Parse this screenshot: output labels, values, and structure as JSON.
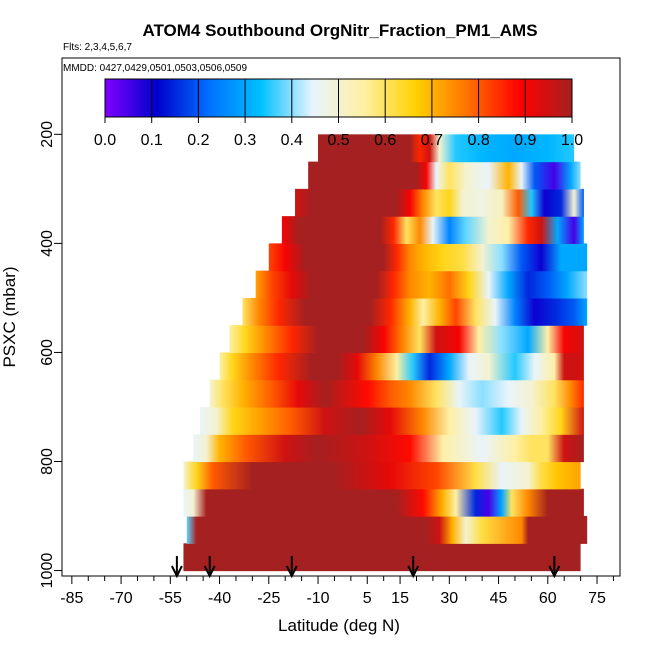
{
  "chart_data": {
    "type": "heatmap",
    "title": "ATOM4 Southbound OrgNitr_Fraction_PM1_AMS",
    "flights_note": "Flts: 2,3,4,5,6,7",
    "dates_note": "MMDD: 0427,0429,0501,0503,0506,0509",
    "xlabel": "Latitude (deg N)",
    "ylabel": "PSXC (mbar)",
    "xlim": [
      -88,
      82
    ],
    "ylim": [
      1010,
      60
    ],
    "x_ticks": [
      -85,
      -70,
      -55,
      -40,
      -25,
      -10,
      5,
      15,
      30,
      45,
      60,
      75
    ],
    "y_ticks": [
      200,
      400,
      600,
      800,
      1000
    ],
    "colorbar": {
      "range": [
        0,
        1
      ],
      "ticks": [
        "0.0",
        "0.1",
        "0.2",
        "0.3",
        "0.4",
        "0.5",
        "0.6",
        "0.7",
        "0.8",
        "0.9",
        "1.0"
      ],
      "colors": [
        "#8000ff",
        "#0000cc",
        "#0070ff",
        "#00c0ff",
        "#e8f4ff",
        "#fff0a0",
        "#ffd000",
        "#ff7000",
        "#ff0000",
        "#a52020"
      ]
    },
    "arrow_latitudes": [
      -53,
      -43,
      -18,
      19,
      62
    ],
    "levels": [
      {
        "p": 975,
        "lat_min": -51,
        "lat_max": 70,
        "stops": [
          [
            -51,
            1.0
          ],
          [
            70,
            1.0
          ]
        ]
      },
      {
        "p": 925,
        "lat_min": -50,
        "lat_max": 72,
        "stops": [
          [
            -50,
            0.38
          ],
          [
            -47,
            1.0
          ],
          [
            23,
            1.0
          ],
          [
            27,
            0.95
          ],
          [
            31,
            0.7
          ],
          [
            35,
            0.5
          ],
          [
            40,
            0.62
          ],
          [
            52,
            0.75
          ],
          [
            54,
            1.0
          ],
          [
            72,
            1.0
          ]
        ]
      },
      {
        "p": 875,
        "lat_min": -51,
        "lat_max": 71,
        "stops": [
          [
            -51,
            0.45
          ],
          [
            -48,
            0.5
          ],
          [
            -44,
            1.0
          ],
          [
            14,
            1.0
          ],
          [
            22,
            0.88
          ],
          [
            28,
            0.7
          ],
          [
            32,
            0.55
          ],
          [
            38,
            0.15
          ],
          [
            42,
            0.05
          ],
          [
            46,
            0.3
          ],
          [
            49,
            0.6
          ],
          [
            54,
            0.75
          ],
          [
            60,
            1.0
          ],
          [
            71,
            1.0
          ]
        ]
      },
      {
        "p": 825,
        "lat_min": -51,
        "lat_max": 70,
        "stops": [
          [
            -51,
            0.5
          ],
          [
            -47,
            0.65
          ],
          [
            -42,
            0.8
          ],
          [
            -30,
            1.0
          ],
          [
            -5,
            1.0
          ],
          [
            12,
            0.92
          ],
          [
            26,
            0.82
          ],
          [
            38,
            0.62
          ],
          [
            46,
            0.45
          ],
          [
            54,
            0.5
          ],
          [
            58,
            0.62
          ],
          [
            63,
            0.68
          ],
          [
            70,
            0.72
          ]
        ]
      },
      {
        "p": 775,
        "lat_min": -48,
        "lat_max": 71,
        "stops": [
          [
            -48,
            0.45
          ],
          [
            -44,
            0.5
          ],
          [
            -40,
            0.7
          ],
          [
            -32,
            0.8
          ],
          [
            -20,
            0.95
          ],
          [
            -10,
            1.0
          ],
          [
            5,
            0.95
          ],
          [
            18,
            0.88
          ],
          [
            28,
            0.55
          ],
          [
            34,
            0.5
          ],
          [
            40,
            0.45
          ],
          [
            50,
            0.55
          ],
          [
            55,
            0.6
          ],
          [
            60,
            0.6
          ],
          [
            65,
            0.95
          ],
          [
            71,
            1.0
          ]
        ]
      },
      {
        "p": 725,
        "lat_min": -46,
        "lat_max": 71,
        "stops": [
          [
            -46,
            0.45
          ],
          [
            -41,
            0.5
          ],
          [
            -36,
            0.65
          ],
          [
            -28,
            0.72
          ],
          [
            -18,
            0.8
          ],
          [
            -8,
            0.95
          ],
          [
            3,
            1.0
          ],
          [
            12,
            0.92
          ],
          [
            22,
            0.75
          ],
          [
            30,
            0.55
          ],
          [
            38,
            0.45
          ],
          [
            46,
            0.35
          ],
          [
            52,
            0.45
          ],
          [
            58,
            0.55
          ],
          [
            64,
            0.65
          ],
          [
            71,
            0.95
          ]
        ]
      },
      {
        "p": 675,
        "lat_min": -43,
        "lat_max": 71,
        "stops": [
          [
            -43,
            0.5
          ],
          [
            -39,
            0.6
          ],
          [
            -33,
            0.7
          ],
          [
            -24,
            0.8
          ],
          [
            -16,
            0.92
          ],
          [
            -8,
            1.0
          ],
          [
            5,
            0.88
          ],
          [
            12,
            0.8
          ],
          [
            18,
            0.75
          ],
          [
            26,
            0.6
          ],
          [
            33,
            0.45
          ],
          [
            40,
            0.4
          ],
          [
            48,
            0.45
          ],
          [
            55,
            0.5
          ],
          [
            62,
            0.6
          ],
          [
            67,
            0.75
          ],
          [
            71,
            0.85
          ]
        ]
      },
      {
        "p": 625,
        "lat_min": -40,
        "lat_max": 71,
        "stops": [
          [
            -40,
            0.55
          ],
          [
            -36,
            0.65
          ],
          [
            -30,
            0.75
          ],
          [
            -22,
            0.85
          ],
          [
            -12,
            1.0
          ],
          [
            -4,
            1.0
          ],
          [
            2,
            0.92
          ],
          [
            8,
            0.75
          ],
          [
            14,
            0.55
          ],
          [
            19,
            0.35
          ],
          [
            24,
            0.15
          ],
          [
            30,
            0.3
          ],
          [
            36,
            0.45
          ],
          [
            42,
            0.5
          ],
          [
            50,
            0.35
          ],
          [
            56,
            0.45
          ],
          [
            62,
            0.55
          ],
          [
            65,
            0.95
          ],
          [
            71,
            0.95
          ]
        ]
      },
      {
        "p": 575,
        "lat_min": -37,
        "lat_max": 71,
        "stops": [
          [
            -37,
            0.55
          ],
          [
            -32,
            0.65
          ],
          [
            -26,
            0.75
          ],
          [
            -18,
            0.85
          ],
          [
            -10,
            1.0
          ],
          [
            4,
            1.0
          ],
          [
            10,
            0.9
          ],
          [
            16,
            0.75
          ],
          [
            21,
            0.6
          ],
          [
            26,
            0.95
          ],
          [
            33,
            0.9
          ],
          [
            39,
            0.55
          ],
          [
            46,
            0.4
          ],
          [
            54,
            0.3
          ],
          [
            60,
            0.55
          ],
          [
            65,
            0.9
          ],
          [
            71,
            0.95
          ]
        ]
      },
      {
        "p": 525,
        "lat_min": -33,
        "lat_max": 72,
        "stops": [
          [
            -33,
            0.6
          ],
          [
            -28,
            0.75
          ],
          [
            -22,
            0.85
          ],
          [
            -14,
            1.0
          ],
          [
            6,
            1.0
          ],
          [
            12,
            0.85
          ],
          [
            18,
            0.7
          ],
          [
            22,
            0.55
          ],
          [
            27,
            0.7
          ],
          [
            32,
            0.82
          ],
          [
            38,
            0.6
          ],
          [
            44,
            0.45
          ],
          [
            50,
            0.25
          ],
          [
            56,
            0.1
          ],
          [
            62,
            0.15
          ],
          [
            68,
            0.2
          ],
          [
            72,
            0.3
          ]
        ]
      },
      {
        "p": 475,
        "lat_min": -29,
        "lat_max": 72,
        "stops": [
          [
            -29,
            0.72
          ],
          [
            -24,
            0.82
          ],
          [
            -18,
            0.92
          ],
          [
            -12,
            1.0
          ],
          [
            8,
            1.0
          ],
          [
            13,
            0.85
          ],
          [
            18,
            0.75
          ],
          [
            24,
            0.7
          ],
          [
            30,
            0.78
          ],
          [
            36,
            0.65
          ],
          [
            42,
            0.45
          ],
          [
            48,
            0.3
          ],
          [
            54,
            0.15
          ],
          [
            60,
            0.2
          ],
          [
            66,
            0.3
          ],
          [
            72,
            0.4
          ]
        ]
      },
      {
        "p": 425,
        "lat_min": -25,
        "lat_max": 72,
        "stops": [
          [
            -25,
            0.82
          ],
          [
            -20,
            0.9
          ],
          [
            -14,
            1.0
          ],
          [
            10,
            1.0
          ],
          [
            14,
            0.85
          ],
          [
            18,
            0.75
          ],
          [
            22,
            0.7
          ],
          [
            28,
            0.65
          ],
          [
            34,
            0.62
          ],
          [
            40,
            0.5
          ],
          [
            46,
            0.4
          ],
          [
            52,
            0.2
          ],
          [
            58,
            0.1
          ],
          [
            64,
            0.3
          ],
          [
            72,
            0.3
          ]
        ]
      },
      {
        "p": 375,
        "lat_min": -21,
        "lat_max": 71,
        "stops": [
          [
            -21,
            0.9
          ],
          [
            -16,
            1.0
          ],
          [
            9,
            1.0
          ],
          [
            13,
            0.85
          ],
          [
            17,
            0.6
          ],
          [
            21,
            0.75
          ],
          [
            25,
            0.45
          ],
          [
            30,
            0.25
          ],
          [
            35,
            0.38
          ],
          [
            42,
            0.5
          ],
          [
            48,
            0.55
          ],
          [
            54,
            0.85
          ],
          [
            58,
            0.95
          ],
          [
            63,
            0.3
          ],
          [
            68,
            0.05
          ],
          [
            71,
            0.3
          ]
        ]
      },
      {
        "p": 325,
        "lat_min": -17,
        "lat_max": 71,
        "stops": [
          [
            -17,
            0.95
          ],
          [
            -12,
            1.0
          ],
          [
            14,
            1.0
          ],
          [
            18,
            0.9
          ],
          [
            22,
            0.75
          ],
          [
            26,
            0.6
          ],
          [
            30,
            0.65
          ],
          [
            34,
            0.5
          ],
          [
            40,
            0.48
          ],
          [
            46,
            0.52
          ],
          [
            51,
            0.8
          ],
          [
            55,
            0.35
          ],
          [
            59,
            0.1
          ],
          [
            64,
            0.15
          ],
          [
            68,
            0.5
          ],
          [
            71,
            0.2
          ]
        ]
      },
      {
        "p": 275,
        "lat_min": -13,
        "lat_max": 70,
        "stops": [
          [
            -13,
            1.0
          ],
          [
            20,
            1.0
          ],
          [
            23,
            0.9
          ],
          [
            26,
            0.45
          ],
          [
            30,
            0.6
          ],
          [
            35,
            0.5
          ],
          [
            42,
            0.45
          ],
          [
            48,
            0.7
          ],
          [
            52,
            0.45
          ],
          [
            56,
            0.2
          ],
          [
            62,
            0.05
          ],
          [
            67,
            0.3
          ],
          [
            70,
            0.4
          ]
        ]
      },
      {
        "p": 225,
        "lat_min": -10,
        "lat_max": 68,
        "stops": [
          [
            -10,
            1.0
          ],
          [
            18,
            1.0
          ],
          [
            21,
            0.85
          ],
          [
            24,
            0.95
          ],
          [
            27,
            0.5
          ],
          [
            32,
            0.35
          ],
          [
            40,
            0.32
          ],
          [
            50,
            0.3
          ],
          [
            60,
            0.32
          ],
          [
            68,
            0.35
          ]
        ]
      }
    ]
  }
}
